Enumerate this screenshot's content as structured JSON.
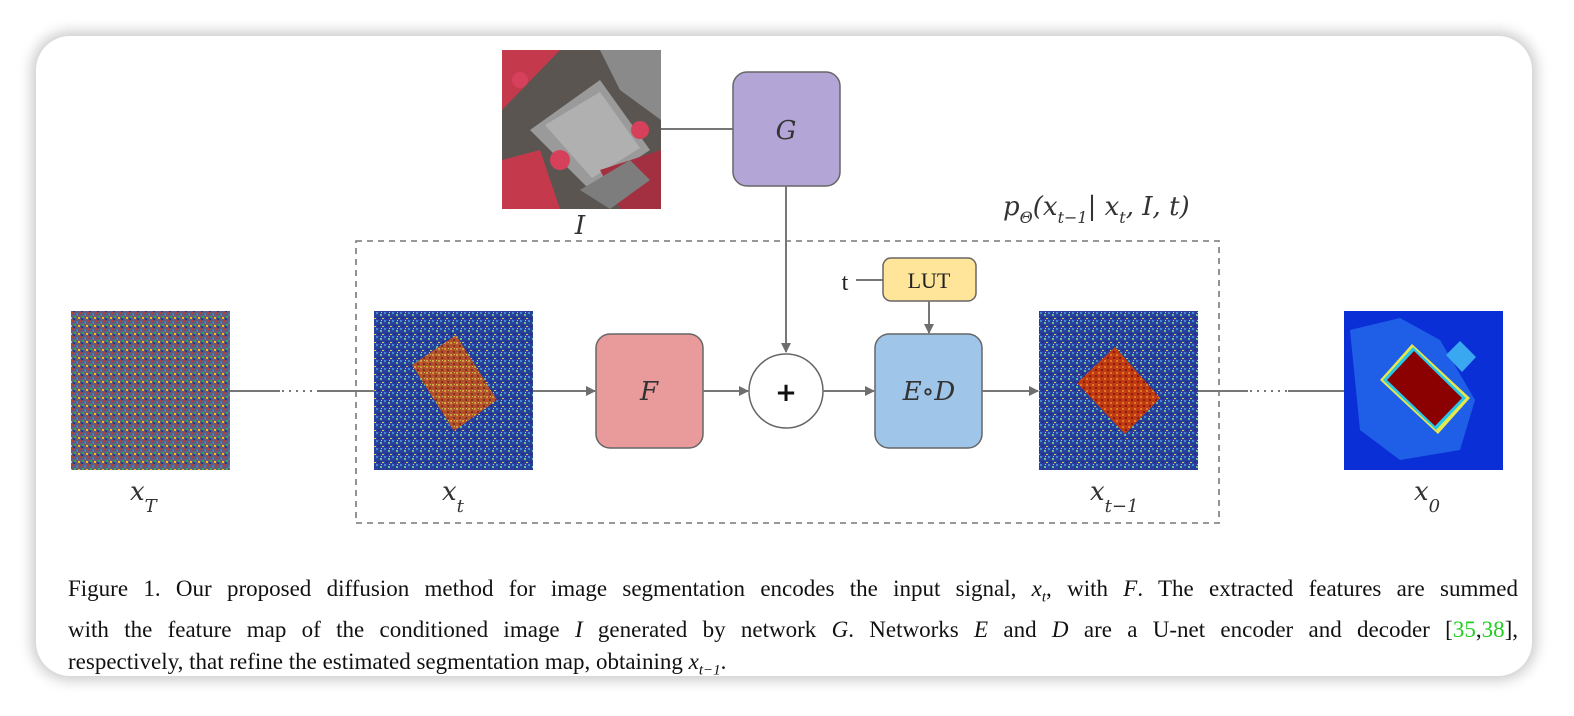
{
  "figure": {
    "input_image_label": "I",
    "xT_label": "x",
    "xT_sub": "T",
    "xt_label": "x",
    "xt_sub": "t",
    "xt1_label": "x",
    "xt1_sub": "t−1",
    "x0_label": "x",
    "x0_sub": "0",
    "G_label": "G",
    "F_label": "F",
    "ED_label": "E∘D",
    "plus_label": "+",
    "LUT_label": "LUT",
    "t_label": "t",
    "p_label": "p",
    "p_sub": "Θ",
    "p_args_open": "(x",
    "p_args_sub1": "t−1",
    "p_args_mid": "| x",
    "p_args_sub2": "t",
    "p_args_close": ", I, t)",
    "colors": {
      "G": "#b3a6d6",
      "F": "#e99a9a",
      "ED": "#9fc5e8",
      "LUT": "#ffe599"
    }
  },
  "caption": {
    "l1_a": "Figure 1. Our proposed diffusion method for image segmentation encodes the input signal, ",
    "l1_var": "x",
    "l1_var_sub": "t",
    "l1_b": ", with ",
    "l1_F": "F",
    "l1_c": ". The extracted features are summed",
    "l2_a": "with the feature map of the conditioned image ",
    "l2_I": "I",
    "l2_b": " generated by network ",
    "l2_G": "G",
    "l2_c": ". Networks ",
    "l2_E": "E",
    "l2_d": " and ",
    "l2_D": "D",
    "l2_e": " are a U-net encoder and decoder [",
    "ref1": "35",
    "comma": ",",
    "ref2": "38",
    "l2_f": "],",
    "l3_a": "respectively, that refine the estimated segmentation map, obtaining ",
    "l3_var": "x",
    "l3_var_sub": "t−1",
    "l3_b": "."
  }
}
